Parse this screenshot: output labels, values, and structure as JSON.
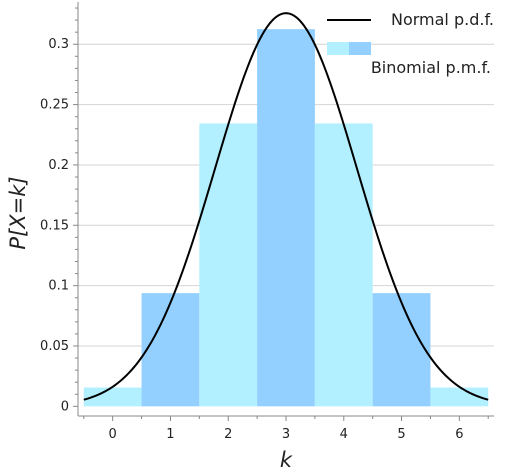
{
  "chart_data": {
    "type": "bar",
    "xlabel": "k",
    "ylabel": "P[X=k]",
    "xlim": [
      -0.6,
      6.6
    ],
    "ylim": [
      -0.008,
      0.335
    ],
    "x_ticks": [
      0,
      1,
      2,
      3,
      4,
      5,
      6
    ],
    "x_tick_labels": [
      "0",
      "1",
      "2",
      "3",
      "4",
      "5",
      "6"
    ],
    "y_ticks": [
      0,
      0.05,
      0.1,
      0.15,
      0.2,
      0.25,
      0.3
    ],
    "y_tick_labels": [
      "0",
      "0.05",
      "0.1",
      "0.15",
      "0.2",
      "0.25",
      "0.3"
    ],
    "grid": "horizontal",
    "legend_position": "top-right",
    "series": [
      {
        "name": "Binomial p.m.f.",
        "type": "bar",
        "k": [
          0,
          1,
          2,
          3,
          4,
          5,
          6
        ],
        "values": [
          0.0156,
          0.0938,
          0.2344,
          0.3125,
          0.2344,
          0.0938,
          0.0156
        ],
        "colors": [
          "#b3f0ff",
          "#93d0ff",
          "#b3f0ff",
          "#93d0ff",
          "#b3f0ff",
          "#93d0ff",
          "#b3f0ff"
        ]
      },
      {
        "name": "Normal p.d.f.",
        "type": "line",
        "mean": 3,
        "sd": 1.2247,
        "x_range": [
          -0.5,
          6.5
        ],
        "color": "#000000"
      }
    ]
  }
}
